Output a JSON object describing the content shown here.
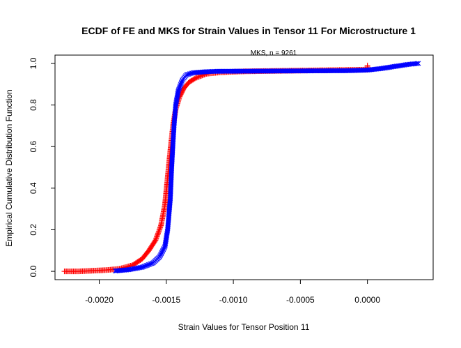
{
  "chart_data": {
    "type": "scatter",
    "title": "ECDF of FE and MKS for Strain Values in Tensor 11 For Microstructure 1",
    "xlabel": "Strain Values for Tensor Position 11",
    "ylabel": "Empirical Cumulative Distribution Function",
    "xlim": [
      -0.00233,
      0.00049
    ],
    "ylim": [
      -0.04,
      1.04
    ],
    "x_ticks": [
      -0.002,
      -0.0015,
      -0.001,
      -0.0005,
      0.0
    ],
    "x_tick_labels": [
      "-0.0020",
      "-0.0015",
      "-0.0010",
      "-0.0005",
      "0.0000"
    ],
    "y_ticks": [
      0.0,
      0.2,
      0.4,
      0.6,
      0.8,
      1.0
    ],
    "y_tick_labels": [
      "0.0",
      "0.2",
      "0.4",
      "0.6",
      "0.8",
      "1.0"
    ],
    "grid": false,
    "annotation": "MKS, n = 9261",
    "series": [
      {
        "name": "",
        "marker": "plus",
        "color": "#ff0000",
        "points": [
          [
            -0.00226,
            0.0
          ],
          [
            -0.00215,
            0.0
          ],
          [
            -0.00205,
            0.003
          ],
          [
            -0.00195,
            0.006
          ],
          [
            -0.00185,
            0.012
          ],
          [
            -0.00175,
            0.03
          ],
          [
            -0.00168,
            0.06
          ],
          [
            -0.00163,
            0.1
          ],
          [
            -0.00158,
            0.15
          ],
          [
            -0.00154,
            0.22
          ],
          [
            -0.00151,
            0.32
          ],
          [
            -0.00149,
            0.45
          ],
          [
            -0.00147,
            0.58
          ],
          [
            -0.00145,
            0.7
          ],
          [
            -0.00143,
            0.78
          ],
          [
            -0.0014,
            0.84
          ],
          [
            -0.00137,
            0.88
          ],
          [
            -0.00133,
            0.91
          ],
          [
            -0.00128,
            0.93
          ],
          [
            -0.0012,
            0.95
          ],
          [
            -0.0011,
            0.957
          ],
          [
            -0.001,
            0.96
          ],
          [
            -0.0009,
            0.962
          ],
          [
            0.0,
            0.97
          ],
          [
            0.0,
            0.99
          ]
        ]
      },
      {
        "name": "",
        "marker": "x",
        "color": "#0000ff",
        "points": [
          [
            -0.00188,
            0.002
          ],
          [
            -0.00178,
            0.008
          ],
          [
            -0.00168,
            0.02
          ],
          [
            -0.0016,
            0.04
          ],
          [
            -0.00155,
            0.07
          ],
          [
            -0.00151,
            0.12
          ],
          [
            -0.00149,
            0.2
          ],
          [
            -0.00147,
            0.35
          ],
          [
            -0.00146,
            0.5
          ],
          [
            -0.00145,
            0.62
          ],
          [
            -0.00144,
            0.72
          ],
          [
            -0.00143,
            0.8
          ],
          [
            -0.00141,
            0.87
          ],
          [
            -0.00138,
            0.92
          ],
          [
            -0.00135,
            0.945
          ],
          [
            -0.0013,
            0.955
          ],
          [
            -0.0012,
            0.96
          ],
          [
            -0.00112,
            0.962
          ],
          [
            -0.00016,
            0.965
          ],
          [
            -0.0001,
            0.966
          ],
          [
            0.0,
            0.968
          ],
          [
            0.0001,
            0.975
          ],
          [
            0.0002,
            0.985
          ],
          [
            0.0003,
            0.995
          ],
          [
            0.00038,
            1.0
          ]
        ]
      }
    ]
  }
}
